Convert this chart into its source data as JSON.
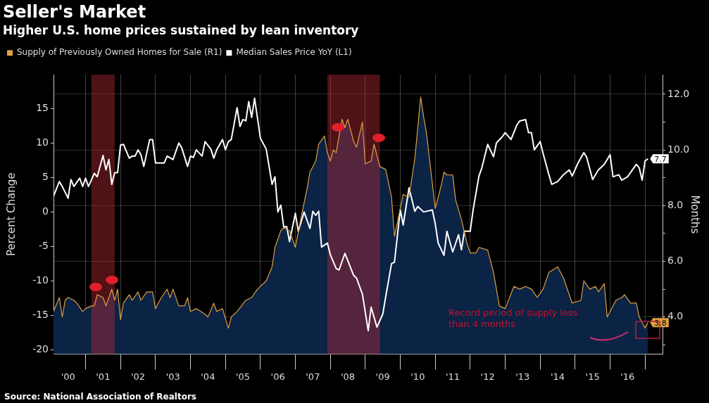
{
  "chart_data": {
    "type": "line",
    "title": "Seller's Market",
    "subtitle": "Higher U.S. home prices sustained by lean inventory",
    "ylabel": "Percent Change",
    "y2label": "Months",
    "xlim": [
      "2000-02",
      "2017-07"
    ],
    "xticks": [
      {
        "value": "2000-07",
        "label": "'00"
      },
      {
        "value": "2001-01",
        "label": null
      },
      {
        "value": "2001-07",
        "label": "'01"
      },
      {
        "value": "2002-01",
        "label": null
      },
      {
        "value": "2002-07",
        "label": "'02"
      },
      {
        "value": "2003-01",
        "label": null
      },
      {
        "value": "2003-07",
        "label": "'03"
      },
      {
        "value": "2004-01",
        "label": null
      },
      {
        "value": "2004-07",
        "label": "'04"
      },
      {
        "value": "2005-01",
        "label": null
      },
      {
        "value": "2005-07",
        "label": "'05"
      },
      {
        "value": "2006-01",
        "label": null
      },
      {
        "value": "2006-07",
        "label": "'06"
      },
      {
        "value": "2007-01",
        "label": null
      },
      {
        "value": "2007-07",
        "label": "'07"
      },
      {
        "value": "2008-01",
        "label": null
      },
      {
        "value": "2008-07",
        "label": "'08"
      },
      {
        "value": "2009-01",
        "label": null
      },
      {
        "value": "2009-07",
        "label": "'09"
      },
      {
        "value": "2010-01",
        "label": null
      },
      {
        "value": "2010-07",
        "label": "'10"
      },
      {
        "value": "2011-01",
        "label": null
      },
      {
        "value": "2011-07",
        "label": "'11"
      },
      {
        "value": "2012-01",
        "label": null
      },
      {
        "value": "2012-07",
        "label": "'12"
      },
      {
        "value": "2013-01",
        "label": null
      },
      {
        "value": "2013-07",
        "label": "'13"
      },
      {
        "value": "2014-01",
        "label": null
      },
      {
        "value": "2014-07",
        "label": "'14"
      },
      {
        "value": "2015-01",
        "label": null
      },
      {
        "value": "2015-07",
        "label": "'15"
      },
      {
        "value": "2016-01",
        "label": null
      },
      {
        "value": "2016-07",
        "label": "'16"
      },
      {
        "value": "2017-01",
        "label": null
      }
    ],
    "ylim": [
      -20.6,
      19.9
    ],
    "yticks": [
      -20,
      -15,
      -10,
      -5,
      0,
      5,
      10,
      15
    ],
    "y2lim": [
      2.67,
      12.7
    ],
    "y2ticks": [
      {
        "value": 3,
        "label": null
      },
      {
        "value": 4,
        "label": "4.0"
      },
      {
        "value": 5,
        "label": null
      },
      {
        "value": 6,
        "label": "6.0"
      },
      {
        "value": 7,
        "label": null
      },
      {
        "value": 8,
        "label": "8.0"
      },
      {
        "value": 9,
        "label": null
      },
      {
        "value": 10,
        "label": "10.0"
      },
      {
        "value": 11,
        "label": null
      },
      {
        "value": 12,
        "label": "12.0"
      }
    ],
    "grid": true,
    "legend": "top left",
    "bands": [
      {
        "axis": "x",
        "from": "2001-03",
        "to": "2001-11",
        "color": "#b02832"
      },
      {
        "axis": "x",
        "from": "2007-12",
        "to": "2009-06",
        "color": "#b02832"
      }
    ],
    "annotations": [
      "Record period of supply less than 4 months",
      "Source: National Association of Realtors"
    ],
    "series": [
      {
        "type": "area",
        "axis": "y2",
        "color": "#0b2345",
        "x": [
          "2000-02",
          "2000-04",
          "2000-05",
          "2000-06",
          "2000-07",
          "2000-09",
          "2000-10",
          "2000-12",
          "2001-01",
          "2001-03",
          "2001-04",
          "2001-05",
          "2001-07",
          "2001-08",
          "2001-10",
          "2001-11",
          "2001-12",
          "2002-01",
          "2002-02",
          "2002-04",
          "2002-05",
          "2002-07",
          "2002-08",
          "2002-10",
          "2002-12",
          "2003-01",
          "2003-03",
          "2003-05",
          "2003-06",
          "2003-07",
          "2003-09",
          "2003-11",
          "2003-12",
          "2004-01",
          "2004-03",
          "2004-06",
          "2004-07",
          "2004-09",
          "2004-10",
          "2004-12",
          "2005-02",
          "2005-03",
          "2005-05",
          "2005-08",
          "2005-10",
          "2005-12",
          "2006-03",
          "2006-05",
          "2006-06",
          "2006-08",
          "2006-09",
          "2006-11",
          "2007-01",
          "2007-03",
          "2007-05",
          "2007-06",
          "2007-08",
          "2007-09",
          "2007-11",
          "2007-12",
          "2008-01",
          "2008-02",
          "2008-03",
          "2008-05",
          "2008-06",
          "2008-07",
          "2008-09",
          "2008-10",
          "2008-12",
          "2009-01",
          "2009-03",
          "2009-04",
          "2009-06",
          "2009-08",
          "2009-10",
          "2009-11",
          "2009-12",
          "2010-02",
          "2010-04",
          "2010-05",
          "2010-06",
          "2010-08",
          "2010-09",
          "2010-10",
          "2010-11",
          "2011-01",
          "2011-03",
          "2011-04",
          "2011-05",
          "2011-07",
          "2011-08",
          "2011-10",
          "2011-12",
          "2012-01",
          "2012-03",
          "2012-04",
          "2012-07",
          "2012-09",
          "2012-11",
          "2013-01",
          "2013-04",
          "2013-06",
          "2013-08",
          "2013-10",
          "2013-12",
          "2014-02",
          "2014-04",
          "2014-07",
          "2014-09",
          "2014-12",
          "2015-03",
          "2015-04",
          "2015-06",
          "2015-08",
          "2015-09",
          "2015-11",
          "2015-12",
          "2016-03",
          "2016-05",
          "2016-06",
          "2016-08",
          "2016-10",
          "2016-11",
          "2017-01",
          "2017-02"
        ],
        "values": [
          4.2,
          4.7,
          4.0,
          4.6,
          4.7,
          4.6,
          4.5,
          4.2,
          4.3,
          4.4,
          4.4,
          4.8,
          4.7,
          4.4,
          5.0,
          4.6,
          5.0,
          3.9,
          4.5,
          4.8,
          4.6,
          4.9,
          4.6,
          4.9,
          4.9,
          4.3,
          4.7,
          5.0,
          4.7,
          5.0,
          4.4,
          4.4,
          4.7,
          4.2,
          4.3,
          4.1,
          4.0,
          4.5,
          4.2,
          4.3,
          3.6,
          4.0,
          4.2,
          4.6,
          4.7,
          5.0,
          5.3,
          5.8,
          6.5,
          7.1,
          7.2,
          7.1,
          6.5,
          7.6,
          8.6,
          9.2,
          9.6,
          10.2,
          10.5,
          9.9,
          9.6,
          10.0,
          9.9,
          11.1,
          10.8,
          11.1,
          10.3,
          10.1,
          11.0,
          9.5,
          9.6,
          10.2,
          9.4,
          9.3,
          8.3,
          6.9,
          7.4,
          8.4,
          8.3,
          9.0,
          9.7,
          11.9,
          11.2,
          10.6,
          9.7,
          7.9,
          8.7,
          9.2,
          9.1,
          9.1,
          8.2,
          7.5,
          6.6,
          6.3,
          6.3,
          6.5,
          6.4,
          5.6,
          4.4,
          4.3,
          5.1,
          5.0,
          5.1,
          5.0,
          4.7,
          5.0,
          5.6,
          5.8,
          5.4,
          4.5,
          4.6,
          5.3,
          5.0,
          5.1,
          4.9,
          5.2,
          4.0,
          4.6,
          4.7,
          4.8,
          4.5,
          4.5,
          4.0,
          3.6,
          3.8
        ]
      },
      {
        "name": "Supply of Previously Owned Homes for Sale (R1)",
        "type": "line",
        "axis": "y2",
        "color": "#e0a040",
        "x": [
          "2000-02",
          "2000-04",
          "2000-05",
          "2000-06",
          "2000-07",
          "2000-09",
          "2000-10",
          "2000-12",
          "2001-01",
          "2001-03",
          "2001-04",
          "2001-05",
          "2001-07",
          "2001-08",
          "2001-10",
          "2001-11",
          "2001-12",
          "2002-01",
          "2002-02",
          "2002-04",
          "2002-05",
          "2002-07",
          "2002-08",
          "2002-10",
          "2002-12",
          "2003-01",
          "2003-03",
          "2003-05",
          "2003-06",
          "2003-07",
          "2003-09",
          "2003-11",
          "2003-12",
          "2004-01",
          "2004-03",
          "2004-06",
          "2004-07",
          "2004-09",
          "2004-10",
          "2004-12",
          "2005-02",
          "2005-03",
          "2005-05",
          "2005-08",
          "2005-10",
          "2005-12",
          "2006-03",
          "2006-05",
          "2006-06",
          "2006-08",
          "2006-09",
          "2006-11",
          "2007-01",
          "2007-03",
          "2007-05",
          "2007-06",
          "2007-08",
          "2007-09",
          "2007-11",
          "2007-12",
          "2008-01",
          "2008-02",
          "2008-03",
          "2008-05",
          "2008-06",
          "2008-07",
          "2008-09",
          "2008-10",
          "2008-12",
          "2009-01",
          "2009-03",
          "2009-04",
          "2009-06",
          "2009-08",
          "2009-10",
          "2009-11",
          "2009-12",
          "2010-02",
          "2010-04",
          "2010-05",
          "2010-06",
          "2010-08",
          "2010-09",
          "2010-10",
          "2010-11",
          "2011-01",
          "2011-03",
          "2011-04",
          "2011-05",
          "2011-07",
          "2011-08",
          "2011-10",
          "2011-12",
          "2012-01",
          "2012-03",
          "2012-04",
          "2012-07",
          "2012-09",
          "2012-11",
          "2013-01",
          "2013-04",
          "2013-06",
          "2013-08",
          "2013-10",
          "2013-12",
          "2014-02",
          "2014-04",
          "2014-07",
          "2014-09",
          "2014-12",
          "2015-03",
          "2015-04",
          "2015-06",
          "2015-08",
          "2015-09",
          "2015-11",
          "2015-12",
          "2016-03",
          "2016-05",
          "2016-06",
          "2016-08",
          "2016-10",
          "2016-11",
          "2017-01",
          "2017-02"
        ],
        "values": [
          4.2,
          4.7,
          4.0,
          4.6,
          4.7,
          4.6,
          4.5,
          4.2,
          4.3,
          4.4,
          4.4,
          4.8,
          4.7,
          4.4,
          5.0,
          4.6,
          5.0,
          3.9,
          4.5,
          4.8,
          4.6,
          4.9,
          4.6,
          4.9,
          4.9,
          4.3,
          4.7,
          5.0,
          4.7,
          5.0,
          4.4,
          4.4,
          4.7,
          4.2,
          4.3,
          4.1,
          4.0,
          4.5,
          4.2,
          4.3,
          3.6,
          4.0,
          4.2,
          4.6,
          4.7,
          5.0,
          5.3,
          5.8,
          6.5,
          7.1,
          7.2,
          7.1,
          6.5,
          7.6,
          8.6,
          9.2,
          9.6,
          10.2,
          10.5,
          9.9,
          9.6,
          10.0,
          9.9,
          11.1,
          10.8,
          11.1,
          10.3,
          10.1,
          11.0,
          9.5,
          9.6,
          10.2,
          9.4,
          9.3,
          8.3,
          6.9,
          7.4,
          8.4,
          8.3,
          9.0,
          9.7,
          11.9,
          11.2,
          10.6,
          9.7,
          7.9,
          8.7,
          9.2,
          9.1,
          9.1,
          8.2,
          7.5,
          6.6,
          6.3,
          6.3,
          6.5,
          6.4,
          5.6,
          4.4,
          4.3,
          5.1,
          5.0,
          5.1,
          5.0,
          4.7,
          5.0,
          5.6,
          5.8,
          5.4,
          4.5,
          4.6,
          5.3,
          5.0,
          5.1,
          4.9,
          5.2,
          4.0,
          4.6,
          4.7,
          4.8,
          4.5,
          4.5,
          4.0,
          3.6,
          3.8
        ],
        "value_labels": [
          null,
          null,
          null,
          null,
          null,
          null,
          null,
          null,
          null,
          null,
          null,
          null,
          null,
          null,
          null,
          null,
          null,
          null,
          null,
          null,
          null,
          null,
          null,
          null,
          null,
          null,
          null,
          null,
          null,
          null,
          null,
          null,
          null,
          null,
          null,
          null,
          null,
          null,
          null,
          null,
          null,
          null,
          null,
          null,
          null,
          null,
          null,
          null,
          null,
          null,
          null,
          null,
          null,
          null,
          null,
          null,
          null,
          null,
          null,
          null,
          null,
          null,
          null,
          null,
          null,
          null,
          null,
          null,
          null,
          null,
          null,
          null,
          null,
          null,
          null,
          null,
          null,
          null,
          null,
          null,
          null,
          null,
          null,
          null,
          null,
          null,
          null,
          null,
          null,
          null,
          null,
          null,
          null,
          null,
          null,
          null,
          null,
          null,
          null,
          null,
          null,
          null,
          null,
          null,
          null,
          null,
          null,
          null,
          null,
          null,
          null,
          null,
          null,
          null,
          null,
          null,
          null,
          null,
          null,
          null,
          null,
          null,
          null,
          null,
          "3.8"
        ]
      },
      {
        "name": "Median Sales Price YoY (L1)",
        "type": "line",
        "color": "#ffffff",
        "x": [
          "2000-02",
          "2000-04",
          "2000-05",
          "2000-07",
          "2000-08",
          "2000-09",
          "2000-11",
          "2000-12",
          "2001-01",
          "2001-02",
          "2001-04",
          "2001-05",
          "2001-07",
          "2001-08",
          "2001-09",
          "2001-10",
          "2001-11",
          "2001-12",
          "2002-01",
          "2002-02",
          "2002-04",
          "2002-05",
          "2002-06",
          "2002-07",
          "2002-08",
          "2002-09",
          "2002-11",
          "2002-12",
          "2003-01",
          "2003-04",
          "2003-05",
          "2003-07",
          "2003-09",
          "2003-10",
          "2003-12",
          "2004-01",
          "2004-02",
          "2004-03",
          "2004-05",
          "2004-06",
          "2004-08",
          "2004-09",
          "2004-10",
          "2004-12",
          "2005-01",
          "2005-02",
          "2005-03",
          "2005-05",
          "2005-06",
          "2005-07",
          "2005-08",
          "2005-09",
          "2005-10",
          "2005-11",
          "2006-01",
          "2006-03",
          "2006-05",
          "2006-06",
          "2006-07",
          "2006-08",
          "2006-09",
          "2006-10",
          "2006-11",
          "2007-01",
          "2007-02",
          "2007-04",
          "2007-06",
          "2007-07",
          "2007-08",
          "2007-09",
          "2007-10",
          "2007-12",
          "2008-01",
          "2008-03",
          "2008-04",
          "2008-06",
          "2008-09",
          "2008-10",
          "2008-12",
          "2009-02",
          "2009-03",
          "2009-05",
          "2009-07",
          "2009-08",
          "2009-10",
          "2009-11",
          "2010-01",
          "2010-02",
          "2010-04",
          "2010-06",
          "2010-07",
          "2010-09",
          "2010-12",
          "2011-01",
          "2011-02",
          "2011-04",
          "2011-05",
          "2011-07",
          "2011-09",
          "2011-10",
          "2011-11",
          "2012-01",
          "2012-02",
          "2012-04",
          "2012-05",
          "2012-07",
          "2012-09",
          "2012-10",
          "2012-12",
          "2013-01",
          "2013-03",
          "2013-05",
          "2013-06",
          "2013-08",
          "2013-09",
          "2013-10",
          "2013-11",
          "2014-01",
          "2014-02",
          "2014-04",
          "2014-05",
          "2014-07",
          "2014-09",
          "2014-11",
          "2014-12",
          "2015-02",
          "2015-04",
          "2015-05",
          "2015-07",
          "2015-09",
          "2015-11",
          "2016-01",
          "2016-02",
          "2016-04",
          "2016-05",
          "2016-07",
          "2016-10",
          "2016-11",
          "2016-12",
          "2017-01",
          "2017-02"
        ],
        "values": [
          2.3,
          4.4,
          3.7,
          2.0,
          4.7,
          3.7,
          4.9,
          3.7,
          4.9,
          3.7,
          5.6,
          5.1,
          8.2,
          6.1,
          7.6,
          4.0,
          5.7,
          5.7,
          9.7,
          9.8,
          7.8,
          8.1,
          8.1,
          9.0,
          8.3,
          6.6,
          10.5,
          10.5,
          7.1,
          7.1,
          8.1,
          7.6,
          10.0,
          9.3,
          6.6,
          8.1,
          7.9,
          9.0,
          8.1,
          10.2,
          9.1,
          7.8,
          9.0,
          10.5,
          9.0,
          10.2,
          10.5,
          15.1,
          12.4,
          13.4,
          13.2,
          16.0,
          13.7,
          16.5,
          10.7,
          9.1,
          4.0,
          5.1,
          0.0,
          1.0,
          -2.2,
          -2.1,
          -4.3,
          -0.2,
          -2.8,
          0.0,
          -2.4,
          0.1,
          -0.5,
          0.1,
          -5.1,
          -4.5,
          -6.2,
          -8.2,
          -8.4,
          -6.0,
          -9.2,
          -9.6,
          -11.9,
          -17.2,
          -13.8,
          -16.7,
          -14.8,
          -12.3,
          -7.5,
          -7.3,
          0.3,
          -1.9,
          3.5,
          0.1,
          0.8,
          0.0,
          0.3,
          -1.7,
          -4.5,
          -6.3,
          -2.8,
          -5.8,
          -3.3,
          -5.5,
          -2.8,
          -2.8,
          0.3,
          5.2,
          6.4,
          9.8,
          8.0,
          10.0,
          10.9,
          11.5,
          10.5,
          12.6,
          13.2,
          13.4,
          11.5,
          11.5,
          9.0,
          10.2,
          8.5,
          5.4,
          4.0,
          4.4,
          5.4,
          6.1,
          5.2,
          7.1,
          8.6,
          7.9,
          4.7,
          6.1,
          6.9,
          8.3,
          5.1,
          5.4,
          4.6,
          5.1,
          6.9,
          6.4,
          4.6,
          7.4,
          7.7
        ],
        "value_labels": [
          null,
          null,
          null,
          null,
          null,
          null,
          null,
          null,
          null,
          null,
          null,
          null,
          null,
          null,
          null,
          null,
          null,
          null,
          null,
          null,
          null,
          null,
          null,
          null,
          null,
          null,
          null,
          null,
          null,
          null,
          null,
          null,
          null,
          null,
          null,
          null,
          null,
          null,
          null,
          null,
          null,
          null,
          null,
          null,
          null,
          null,
          null,
          null,
          null,
          null,
          null,
          null,
          null,
          null,
          null,
          null,
          null,
          null,
          null,
          null,
          null,
          null,
          null,
          null,
          null,
          null,
          null,
          null,
          null,
          null,
          null,
          null,
          null,
          null,
          null,
          null,
          null,
          null,
          null,
          null,
          null,
          null,
          null,
          null,
          null,
          null,
          null,
          null,
          null,
          null,
          null,
          null,
          null,
          null,
          null,
          null,
          null,
          null,
          null,
          null,
          null,
          null,
          null,
          null,
          null,
          null,
          null,
          null,
          null,
          null,
          null,
          null,
          null,
          null,
          null,
          null,
          null,
          null,
          null,
          null,
          null,
          null,
          null,
          null,
          null,
          null,
          null,
          null,
          null,
          null,
          null,
          null,
          null,
          null,
          null,
          null,
          null,
          null,
          null,
          null,
          "7.7"
        ]
      }
    ]
  }
}
